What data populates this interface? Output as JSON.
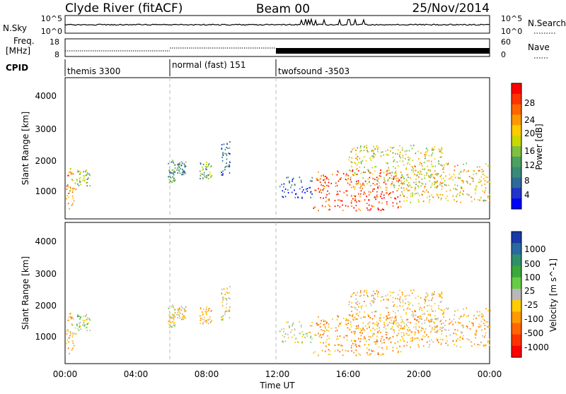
{
  "header": {
    "station": "Clyde River (fitACF)",
    "beam": "Beam 00",
    "date": "25/Nov/2014"
  },
  "summary_panels": {
    "nsky": {
      "left_label": "N.Sky",
      "right_label": "N.Search",
      "left_ticks": [
        "10^5",
        "10^0"
      ],
      "right_ticks": [
        "10^5",
        "10^0"
      ]
    },
    "freq": {
      "left_label_line1": "Freq.",
      "left_label_line2": "[MHz]",
      "right_label": "Nave",
      "left_ticks": [
        "18",
        "8"
      ],
      "right_ticks": [
        "60",
        "0"
      ]
    },
    "cpid": {
      "label": "CPID",
      "segments": [
        {
          "name": "themis 3300",
          "start_hour": 0,
          "end_hour": 6
        },
        {
          "name": "normal (fast) 151",
          "start_hour": 6,
          "end_hour": 12
        },
        {
          "name": "twofsound -3503",
          "start_hour": 12,
          "end_hour": 24
        }
      ]
    }
  },
  "x_axis": {
    "label": "Time UT",
    "ticks": [
      "00:00",
      "04:00",
      "08:00",
      "12:00",
      "16:00",
      "20:00",
      "00:00"
    ],
    "range_hours": [
      0,
      24
    ]
  },
  "power_panel": {
    "ylabel": "Slant Range [km]",
    "yticks": [
      "4000",
      "3000",
      "2000",
      "1000"
    ],
    "colorbar_title": "Power [dB]",
    "colorbar_labels": [
      "28",
      "24",
      "20",
      "16",
      "12",
      "8",
      "4"
    ],
    "colorbar_colors": [
      "#ff0000",
      "#ff3300",
      "#ff6600",
      "#ff9900",
      "#ffcc00",
      "#c8d800",
      "#7fc040",
      "#4ca060",
      "#3a8a78",
      "#2e6a9a",
      "#2233cc",
      "#0000ff"
    ]
  },
  "velocity_panel": {
    "ylabel": "Slant Range [km]",
    "yticks": [
      "4000",
      "3000",
      "2000",
      "1000"
    ],
    "colorbar_title": "Velocity [m s^-1]",
    "colorbar_labels": [
      "1000",
      "500",
      "100",
      "25",
      "-25",
      "-100",
      "-500",
      "-1000"
    ],
    "colorbar_colors": [
      "#1a3aa8",
      "#2a68a0",
      "#2e8f6a",
      "#3aa83a",
      "#66cc44",
      "#b8b8b8",
      "#ffcc00",
      "#ff9900",
      "#ff6600",
      "#ff3300",
      "#ff0000"
    ]
  },
  "chart_data": {
    "type": "heatmap",
    "title": "Clyde River (fitACF)   Beam 00   25/Nov/2014",
    "xlabel": "Time UT",
    "ylabel": "Slant Range [km]",
    "xlim_hours": [
      0,
      24
    ],
    "ylim_km": [
      180,
      4500
    ],
    "power_db_range": [
      3,
      30
    ],
    "velocity_range": [
      -1000,
      1000
    ],
    "scatter_regions": [
      {
        "t_start": 0.0,
        "t_end": 0.6,
        "r_min": 500,
        "r_max": 1800,
        "power_db": 22,
        "velocity": -300
      },
      {
        "t_start": 0.6,
        "t_end": 1.4,
        "r_min": 1200,
        "r_max": 1700,
        "power_db": 16,
        "velocity": 50
      },
      {
        "t_start": 5.8,
        "t_end": 6.2,
        "r_min": 1300,
        "r_max": 2000,
        "power_db": 12,
        "velocity": -100
      },
      {
        "t_start": 6.3,
        "t_end": 6.8,
        "r_min": 1550,
        "r_max": 1950,
        "power_db": 10,
        "velocity": -200
      },
      {
        "t_start": 7.6,
        "t_end": 8.3,
        "r_min": 1400,
        "r_max": 1950,
        "power_db": 14,
        "velocity": -200
      },
      {
        "t_start": 8.8,
        "t_end": 9.3,
        "r_min": 1500,
        "r_max": 2600,
        "power_db": 8,
        "velocity": -150
      },
      {
        "t_start": 12.1,
        "t_end": 14.0,
        "r_min": 800,
        "r_max": 1500,
        "power_db": 6,
        "velocity": -60
      },
      {
        "t_start": 14.0,
        "t_end": 19.0,
        "r_min": 450,
        "r_max": 1700,
        "power_db": 28,
        "velocity": -400
      },
      {
        "t_start": 16.0,
        "t_end": 21.5,
        "r_min": 1100,
        "r_max": 2450,
        "power_db": 18,
        "velocity": -250
      },
      {
        "t_start": 19.0,
        "t_end": 24.0,
        "r_min": 700,
        "r_max": 1900,
        "power_db": 20,
        "velocity": -300
      }
    ]
  }
}
